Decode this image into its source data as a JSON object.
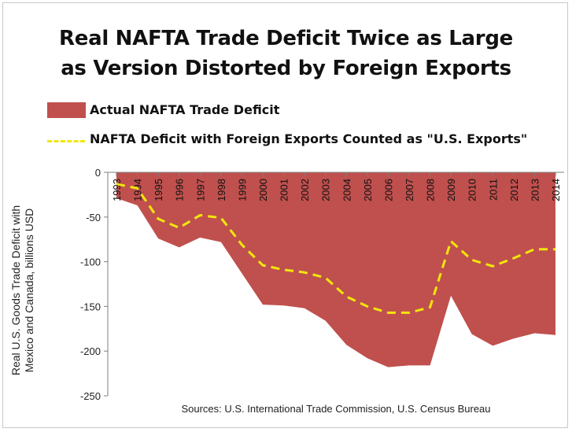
{
  "title_line1": "Real NAFTA Trade Deficit Twice as Large",
  "title_line2": "as Version Distorted by Foreign Exports",
  "colors": {
    "area": "#c0504d",
    "line": "#f2e60d"
  },
  "chart_data": {
    "type": "area",
    "title": "Real NAFTA Trade Deficit Twice as Large as Version Distorted by Foreign Exports",
    "ylabel_line1": "Real U.S. Goods Trade Deficit with",
    "ylabel_line2": "Mexico and Canada, billions USD",
    "xlabel": "",
    "ylim": [
      -250,
      0
    ],
    "yticks": [
      0,
      -50,
      -100,
      -150,
      -200,
      -250
    ],
    "ytick_labels": [
      "0",
      "-50",
      "-100",
      "-150",
      "-200",
      "-250"
    ],
    "grid": false,
    "legend_placement": "top",
    "categories": [
      "1993",
      "1994",
      "1995",
      "1996",
      "1997",
      "1998",
      "1999",
      "2000",
      "2001",
      "2002",
      "2003",
      "2004",
      "2005",
      "2006",
      "2007",
      "2008",
      "2009",
      "2010",
      "2011",
      "2012",
      "2013",
      "2014"
    ],
    "series": [
      {
        "name": "Actual NAFTA Trade Deficit",
        "type": "area",
        "values": [
          -29,
          -37,
          -74,
          -84,
          -73,
          -78,
          -113,
          -148,
          -149,
          -152,
          -166,
          -193,
          -208,
          -218,
          -216,
          -216,
          -138,
          -181,
          -194,
          -186,
          -180,
          -182
        ]
      },
      {
        "name": "NAFTA Deficit with Foreign Exports Counted as \"U.S. Exports\"",
        "type": "line",
        "values": [
          -13,
          -18,
          -52,
          -62,
          -48,
          -51,
          -81,
          -104,
          -109,
          -112,
          -118,
          -139,
          -150,
          -157,
          -157,
          -151,
          -77,
          -98,
          -105,
          -96,
          -86,
          -86
        ]
      }
    ],
    "source": "Sources: U.S. International Trade Commission, U.S. Census Bureau"
  }
}
